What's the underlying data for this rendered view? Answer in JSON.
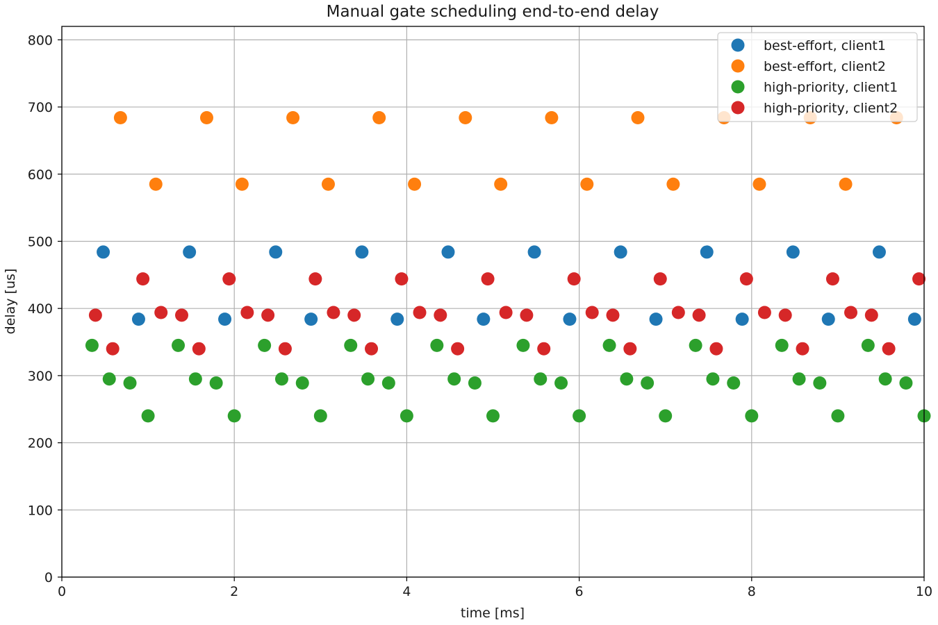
{
  "chart_data": {
    "type": "scatter",
    "title": "Manual gate scheduling end-to-end delay",
    "xlabel": "time [ms]",
    "ylabel": "delay [us]",
    "xlim": [
      0,
      10
    ],
    "ylim": [
      0,
      820
    ],
    "xticks": [
      "0",
      "2",
      "4",
      "6",
      "8",
      "10"
    ],
    "yticks": [
      "0",
      "100",
      "200",
      "300",
      "400",
      "500",
      "600",
      "700",
      "800"
    ],
    "grid": true,
    "legend_position": "top-right",
    "series": [
      {
        "name": "best-effort, client1",
        "color": "#1f77b4",
        "x": [
          0.48,
          0.89,
          1.48,
          1.89,
          2.48,
          2.89,
          3.48,
          3.89,
          4.48,
          4.89,
          5.48,
          5.89,
          6.48,
          6.89,
          7.48,
          7.89,
          8.48,
          8.89,
          9.48,
          9.89
        ],
        "y": [
          484,
          384,
          484,
          384,
          484,
          384,
          484,
          384,
          484,
          384,
          484,
          384,
          484,
          384,
          484,
          384,
          484,
          384,
          484,
          384
        ]
      },
      {
        "name": "best-effort, client2",
        "color": "#ff7f0e",
        "x": [
          0.68,
          1.09,
          1.68,
          2.09,
          2.68,
          3.09,
          3.68,
          4.09,
          4.68,
          5.09,
          5.68,
          6.09,
          6.68,
          7.09,
          7.68,
          8.09,
          8.68,
          9.09,
          9.68
        ],
        "y": [
          684,
          585,
          684,
          585,
          684,
          585,
          684,
          585,
          684,
          585,
          684,
          585,
          684,
          585,
          684,
          585,
          684,
          585,
          684
        ]
      },
      {
        "name": "high-priority, client1",
        "color": "#2ca02c",
        "x": [
          0.35,
          0.55,
          0.79,
          1.0,
          1.35,
          1.55,
          1.79,
          2.0,
          2.35,
          2.55,
          2.79,
          3.0,
          3.35,
          3.55,
          3.79,
          4.0,
          4.35,
          4.55,
          4.79,
          5.0,
          5.35,
          5.55,
          5.79,
          6.0,
          6.35,
          6.55,
          6.79,
          7.0,
          7.35,
          7.55,
          7.79,
          8.0,
          8.35,
          8.55,
          8.79,
          9.0,
          9.35,
          9.55,
          9.79,
          10.0
        ],
        "y": [
          345,
          295,
          289,
          240,
          345,
          295,
          289,
          240,
          345,
          295,
          289,
          240,
          345,
          295,
          289,
          240,
          345,
          295,
          289,
          240,
          345,
          295,
          289,
          240,
          345,
          295,
          289,
          240,
          345,
          295,
          289,
          240,
          345,
          295,
          289,
          240,
          345,
          295,
          289,
          240
        ]
      },
      {
        "name": "high-priority, client2",
        "color": "#d62728",
        "x": [
          0.39,
          0.59,
          0.94,
          1.15,
          1.39,
          1.59,
          1.94,
          2.15,
          2.39,
          2.59,
          2.94,
          3.15,
          3.39,
          3.59,
          3.94,
          4.15,
          4.39,
          4.59,
          4.94,
          5.15,
          5.39,
          5.59,
          5.94,
          6.15,
          6.39,
          6.59,
          6.94,
          7.15,
          7.39,
          7.59,
          7.94,
          8.15,
          8.39,
          8.59,
          8.94,
          9.15,
          9.39,
          9.59,
          9.94
        ],
        "y": [
          390,
          340,
          444,
          394,
          390,
          340,
          444,
          394,
          390,
          340,
          444,
          394,
          390,
          340,
          444,
          394,
          390,
          340,
          444,
          394,
          390,
          340,
          444,
          394,
          390,
          340,
          444,
          394,
          390,
          340,
          444,
          394,
          390,
          340,
          444,
          394,
          390,
          340,
          444
        ]
      }
    ]
  }
}
